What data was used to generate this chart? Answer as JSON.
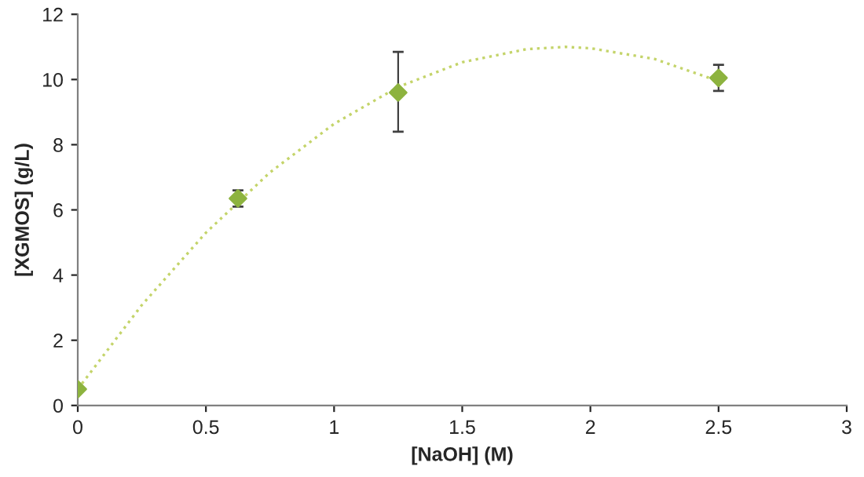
{
  "chart_data": {
    "type": "scatter",
    "xlabel": "[NaOH] (M)",
    "ylabel": "[XGMOS] (g/L)",
    "xlim": [
      0,
      3
    ],
    "ylim": [
      0,
      12
    ],
    "xticks": [
      0,
      0.5,
      1,
      1.5,
      2,
      2.5,
      3
    ],
    "yticks": [
      0,
      2,
      4,
      6,
      8,
      10,
      12
    ],
    "grid": false,
    "legend": false,
    "series": [
      {
        "color": "#8db33f",
        "marker": "diamond",
        "x": [
          0,
          0.625,
          1.25,
          2.5
        ],
        "values": [
          0.5,
          6.35,
          9.6,
          10.05
        ],
        "errors": [
          null,
          0.25,
          [
            8.4,
            10.85
          ],
          0.4
        ]
      },
      {
        "type": "line",
        "color": "#c4d46a",
        "line_style": "dotted",
        "marker": "none",
        "x": [
          0,
          0.25,
          0.5,
          0.75,
          1.0,
          1.25,
          1.5,
          1.75,
          1.9,
          2.0,
          2.25,
          2.5
        ],
        "values": [
          0.5,
          3.08,
          5.3,
          7.15,
          8.64,
          9.77,
          10.53,
          10.93,
          11.0,
          10.96,
          10.63,
          9.95
        ]
      }
    ]
  }
}
